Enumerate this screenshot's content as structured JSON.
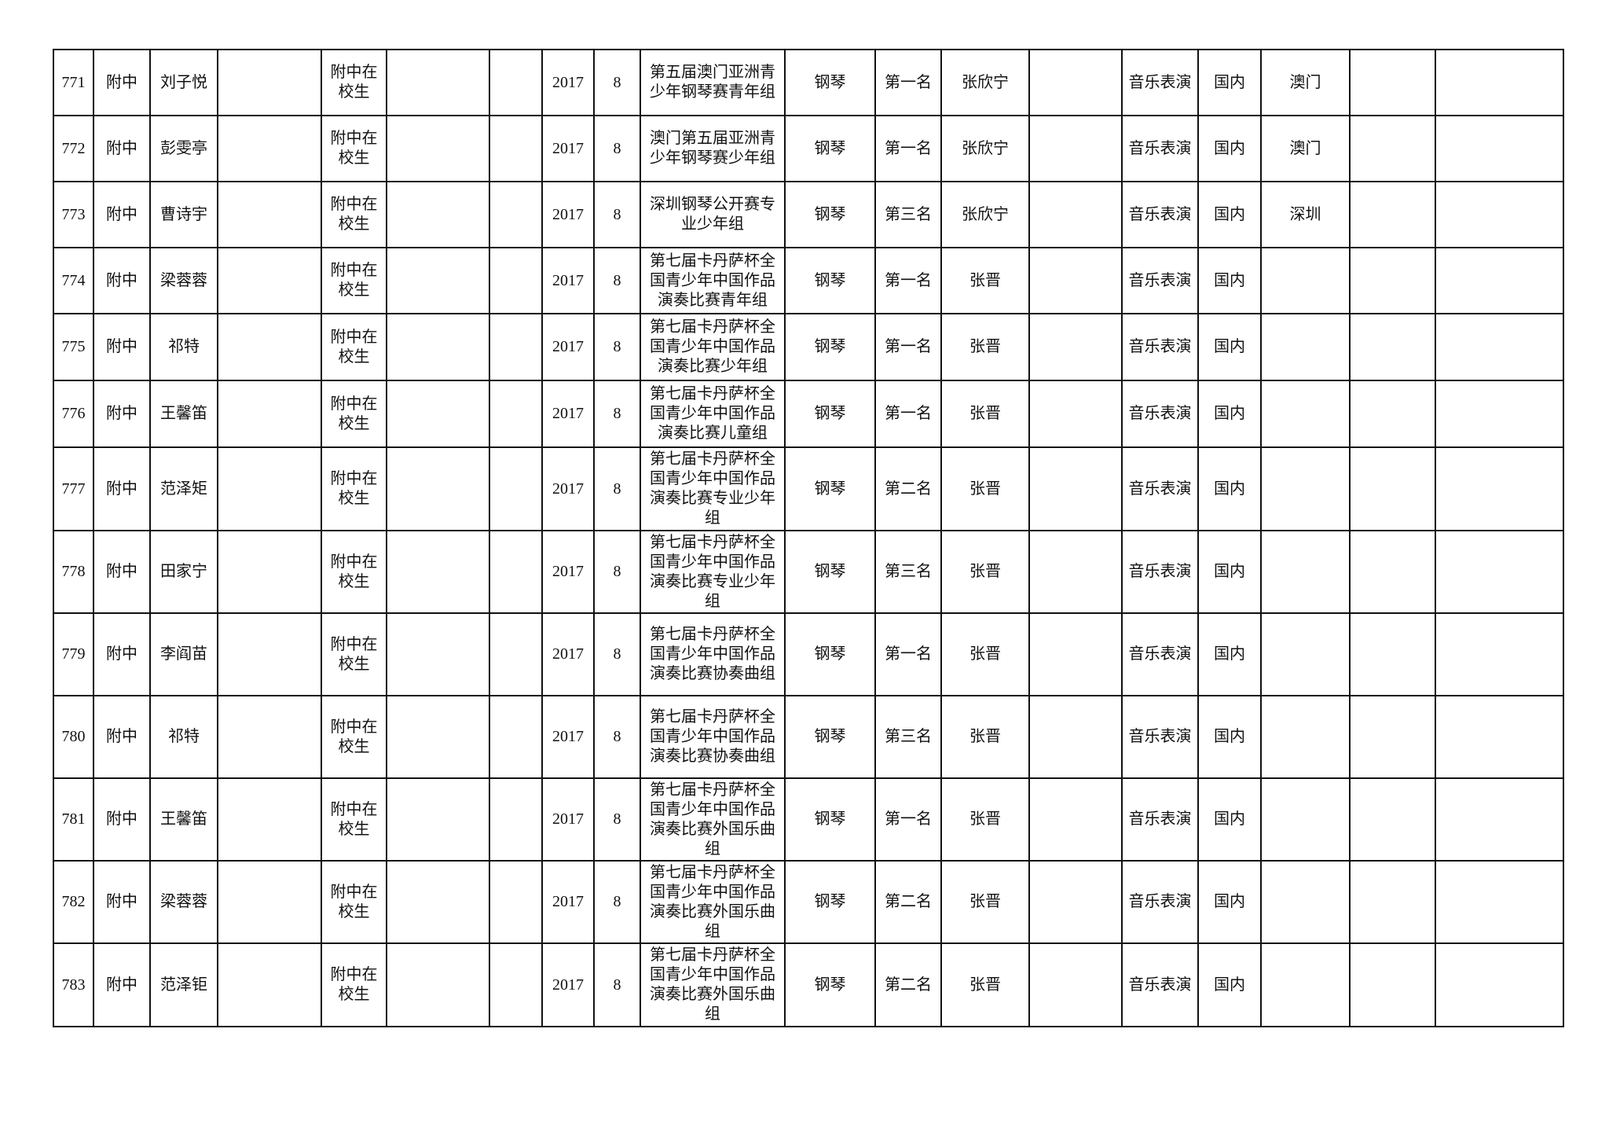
{
  "rows": [
    {
      "no": "771",
      "unit": "附中",
      "name": "刘子悦",
      "status": "附中在校生",
      "year": "2017",
      "month": "8",
      "competition": "第五届澳门亚洲青少年钢琴赛青年组",
      "instrument": "钢琴",
      "award": "第一名",
      "teacher": "张欣宁",
      "category": "音乐表演",
      "scope": "国内",
      "place": "澳门"
    },
    {
      "no": "772",
      "unit": "附中",
      "name": "彭雯亭",
      "status": "附中在校生",
      "year": "2017",
      "month": "8",
      "competition": "澳门第五届亚洲青少年钢琴赛少年组",
      "instrument": "钢琴",
      "award": "第一名",
      "teacher": "张欣宁",
      "category": "音乐表演",
      "scope": "国内",
      "place": "澳门"
    },
    {
      "no": "773",
      "unit": "附中",
      "name": "曹诗宇",
      "status": "附中在校生",
      "year": "2017",
      "month": "8",
      "competition": "深圳钢琴公开赛专业少年组",
      "instrument": "钢琴",
      "award": "第三名",
      "teacher": "张欣宁",
      "category": "音乐表演",
      "scope": "国内",
      "place": "深圳"
    },
    {
      "no": "774",
      "unit": "附中",
      "name": "梁蓉蓉",
      "status": "附中在校生",
      "year": "2017",
      "month": "8",
      "competition": "第七届卡丹萨杯全国青少年中国作品演奏比赛青年组",
      "instrument": "钢琴",
      "award": "第一名",
      "teacher": "张晋",
      "category": "音乐表演",
      "scope": "国内",
      "place": ""
    },
    {
      "no": "775",
      "unit": "附中",
      "name": "祁特",
      "status": "附中在校生",
      "year": "2017",
      "month": "8",
      "competition": "第七届卡丹萨杯全国青少年中国作品演奏比赛少年组",
      "instrument": "钢琴",
      "award": "第一名",
      "teacher": "张晋",
      "category": "音乐表演",
      "scope": "国内",
      "place": ""
    },
    {
      "no": "776",
      "unit": "附中",
      "name": "王馨笛",
      "status": "附中在校生",
      "year": "2017",
      "month": "8",
      "competition": "第七届卡丹萨杯全国青少年中国作品演奏比赛儿童组",
      "instrument": "钢琴",
      "award": "第一名",
      "teacher": "张晋",
      "category": "音乐表演",
      "scope": "国内",
      "place": ""
    },
    {
      "no": "777",
      "unit": "附中",
      "name": "范泽矩",
      "status": "附中在校生",
      "year": "2017",
      "month": "8",
      "competition": "第七届卡丹萨杯全国青少年中国作品演奏比赛专业少年组",
      "instrument": "钢琴",
      "award": "第二名",
      "teacher": "张晋",
      "category": "音乐表演",
      "scope": "国内",
      "place": ""
    },
    {
      "no": "778",
      "unit": "附中",
      "name": "田家宁",
      "status": "附中在校生",
      "year": "2017",
      "month": "8",
      "competition": "第七届卡丹萨杯全国青少年中国作品演奏比赛专业少年组",
      "instrument": "钢琴",
      "award": "第三名",
      "teacher": "张晋",
      "category": "音乐表演",
      "scope": "国内",
      "place": ""
    },
    {
      "no": "779",
      "unit": "附中",
      "name": "李阎苗",
      "status": "附中在校生",
      "year": "2017",
      "month": "8",
      "competition": "第七届卡丹萨杯全国青少年中国作品演奏比赛协奏曲组",
      "instrument": "钢琴",
      "award": "第一名",
      "teacher": "张晋",
      "category": "音乐表演",
      "scope": "国内",
      "place": ""
    },
    {
      "no": "780",
      "unit": "附中",
      "name": "祁特",
      "status": "附中在校生",
      "year": "2017",
      "month": "8",
      "competition": "第七届卡丹萨杯全国青少年中国作品演奏比赛协奏曲组",
      "instrument": "钢琴",
      "award": "第三名",
      "teacher": "张晋",
      "category": "音乐表演",
      "scope": "国内",
      "place": ""
    },
    {
      "no": "781",
      "unit": "附中",
      "name": "王馨笛",
      "status": "附中在校生",
      "year": "2017",
      "month": "8",
      "competition": "第七届卡丹萨杯全国青少年中国作品演奏比赛外国乐曲组",
      "instrument": "钢琴",
      "award": "第一名",
      "teacher": "张晋",
      "category": "音乐表演",
      "scope": "国内",
      "place": ""
    },
    {
      "no": "782",
      "unit": "附中",
      "name": "梁蓉蓉",
      "status": "附中在校生",
      "year": "2017",
      "month": "8",
      "competition": "第七届卡丹萨杯全国青少年中国作品演奏比赛外国乐曲组",
      "instrument": "钢琴",
      "award": "第二名",
      "teacher": "张晋",
      "category": "音乐表演",
      "scope": "国内",
      "place": ""
    },
    {
      "no": "783",
      "unit": "附中",
      "name": "范泽钜",
      "status": "附中在校生",
      "year": "2017",
      "month": "8",
      "competition": "第七届卡丹萨杯全国青少年中国作品演奏比赛外国乐曲组",
      "instrument": "钢琴",
      "award": "第二名",
      "teacher": "张晋",
      "category": "音乐表演",
      "scope": "国内",
      "place": ""
    }
  ]
}
